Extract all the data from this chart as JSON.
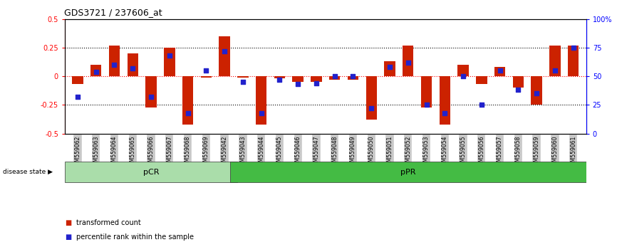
{
  "title": "GDS3721 / 237606_at",
  "samples": [
    "GSM559062",
    "GSM559063",
    "GSM559064",
    "GSM559065",
    "GSM559066",
    "GSM559067",
    "GSM559068",
    "GSM559069",
    "GSM559042",
    "GSM559043",
    "GSM559044",
    "GSM559045",
    "GSM559046",
    "GSM559047",
    "GSM559048",
    "GSM559049",
    "GSM559050",
    "GSM559051",
    "GSM559052",
    "GSM559053",
    "GSM559054",
    "GSM559055",
    "GSM559056",
    "GSM559057",
    "GSM559058",
    "GSM559059",
    "GSM559060",
    "GSM559061"
  ],
  "transformed_count": [
    -0.07,
    0.1,
    0.27,
    0.2,
    -0.27,
    0.25,
    -0.42,
    -0.01,
    0.35,
    -0.01,
    -0.42,
    -0.02,
    -0.05,
    -0.05,
    -0.03,
    -0.03,
    -0.38,
    0.13,
    0.27,
    -0.27,
    -0.42,
    0.1,
    -0.07,
    0.08,
    -0.1,
    -0.25,
    0.27,
    0.27
  ],
  "percentile_rank": [
    32,
    54,
    60,
    57,
    32,
    68,
    18,
    55,
    72,
    45,
    18,
    47,
    43,
    44,
    50,
    50,
    22,
    58,
    62,
    25,
    18,
    50,
    25,
    55,
    38,
    35,
    55,
    75
  ],
  "bar_color": "#CC2200",
  "dot_color": "#2222CC",
  "ylim": [
    -0.5,
    0.5
  ],
  "dotted_lines": [
    0.25,
    0.0,
    -0.25
  ],
  "pCR_count": 9,
  "pPR_count": 19,
  "pcr_color": "#AADDAA",
  "ppr_color": "#44BB44",
  "xtick_bg": "#CCCCCC"
}
